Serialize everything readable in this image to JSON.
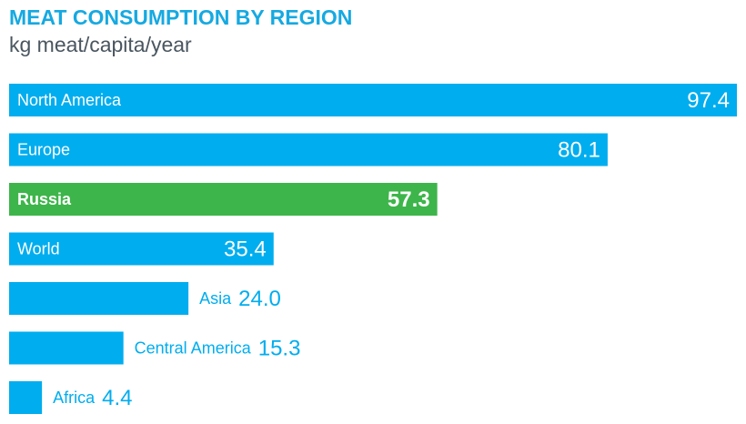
{
  "title": "MEAT CONSUMPTION BY REGION",
  "subtitle": "kg meat/capita/year",
  "colors": {
    "default": "#00ADEF",
    "highlight": "#3DB54A"
  },
  "chart_data": {
    "type": "bar",
    "orientation": "horizontal",
    "categories": [
      "North America",
      "Europe",
      "Russia",
      "World",
      "Asia",
      "Central America",
      "Africa"
    ],
    "values": [
      97.4,
      80.1,
      57.3,
      35.4,
      24.0,
      15.3,
      4.4
    ],
    "value_labels": [
      "97.4",
      "80.1",
      "57.3",
      "35.4",
      "24.0",
      "15.3",
      "4.4"
    ],
    "highlight": [
      "Russia"
    ],
    "title": "MEAT CONSUMPTION BY REGION",
    "subtitle": "kg meat/capita/year",
    "xlim": [
      0,
      97.4
    ],
    "grid": false,
    "legend": "none"
  }
}
